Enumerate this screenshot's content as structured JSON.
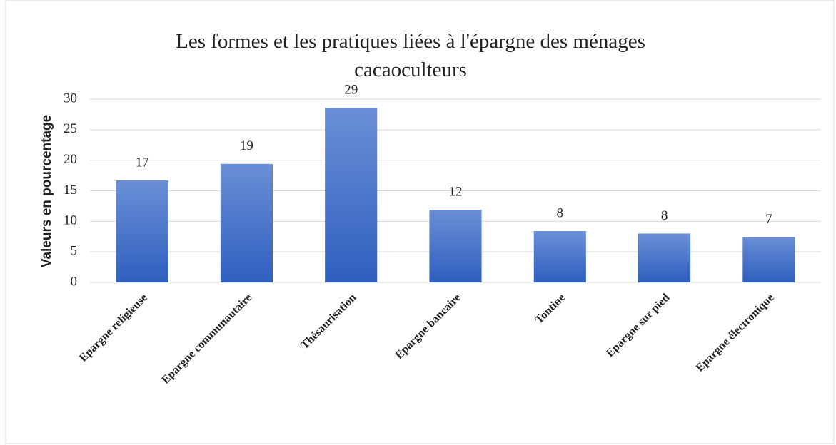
{
  "chart_data": {
    "type": "bar",
    "title": "Les formes et les pratiques liées à l'épargne des ménages cacaoculteurs",
    "y_label": "Valeurs en pourcentage",
    "categories": [
      "Epargne religieuse",
      "Epargne communautaire",
      "Thésaurisation",
      "Epargne bancaire",
      "Tontine",
      "Epargne sur pied",
      "Epargne électronique"
    ],
    "values": [
      16.7,
      19.4,
      28.6,
      11.9,
      8.4,
      8.0,
      7.4
    ],
    "value_labels": [
      "17",
      "19",
      "29",
      "12",
      "8",
      "8",
      "7"
    ],
    "color": "#4472c4",
    "ylim": [
      0,
      30
    ],
    "yticks": [
      0,
      5,
      10,
      15,
      20,
      25,
      30
    ],
    "grid": true
  }
}
